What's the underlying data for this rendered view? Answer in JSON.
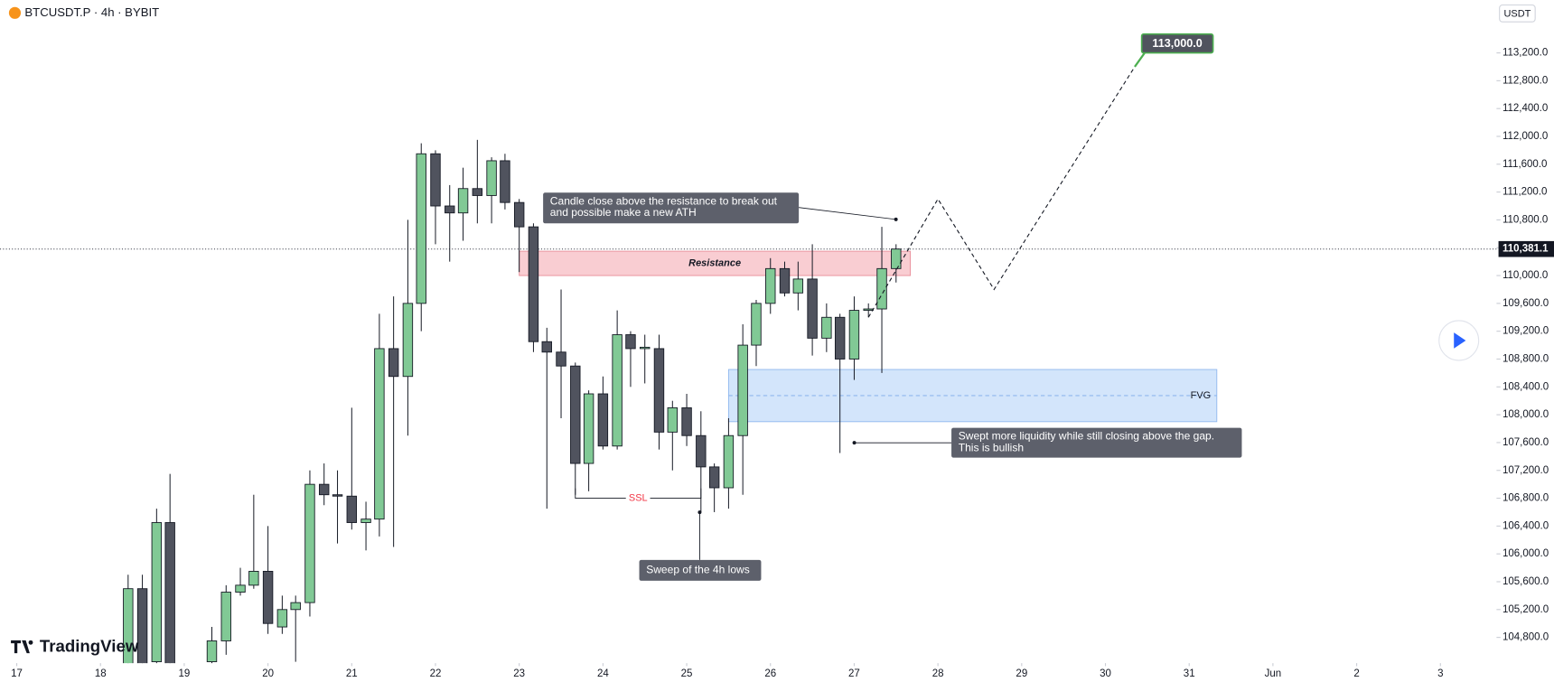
{
  "chart_data": {
    "type": "candlestick",
    "title": "BTCUSDT.P · 4h · BYBIT",
    "currency": "USDT",
    "branding": "TradingView",
    "up_color": "#81c995",
    "down_color": "#50535e",
    "x": [
      18.33,
      18.5,
      18.67,
      18.83,
      19.33,
      19.5,
      19.67,
      19.83,
      20,
      20.17,
      20.33,
      20.5,
      20.67,
      20.83,
      21,
      21.17,
      21.33,
      21.5,
      21.67,
      21.83,
      22,
      22.17,
      22.33,
      22.5,
      22.67,
      22.83,
      23,
      23.17,
      23.33,
      23.5,
      23.67,
      23.83,
      24,
      24.17,
      24.33,
      24.5,
      24.67,
      24.83,
      25,
      25.17,
      25.33,
      25.5,
      25.67,
      25.83,
      26,
      26.17,
      26.33,
      26.5,
      26.67,
      26.83,
      27,
      27.17,
      27.33,
      27.5
    ],
    "open": [
      104350,
      105500,
      104450,
      106450,
      104450,
      104750,
      105450,
      105550,
      105750,
      104950,
      105200,
      105300,
      107000,
      106850,
      106830,
      106450,
      106500,
      108950,
      108550,
      109600,
      111750,
      111000,
      110900,
      111250,
      111150,
      111650,
      111050,
      110700,
      109050,
      108900,
      108700,
      107300,
      108300,
      107550,
      109150,
      108950,
      108950,
      107750,
      108100,
      107700,
      107250,
      106950,
      107700,
      109000,
      109600,
      110100,
      109750,
      109950,
      109100,
      109400,
      108800,
      109500,
      109520,
      110100
    ],
    "high": [
      105700,
      105700,
      106650,
      107150,
      104950,
      105550,
      105800,
      106850,
      106400,
      105400,
      105400,
      107200,
      107300,
      107200,
      108100,
      106750,
      109450,
      109700,
      110800,
      111900,
      111800,
      111300,
      111550,
      111950,
      111700,
      111750,
      111100,
      110750,
      109250,
      109800,
      108750,
      108350,
      108550,
      109500,
      109200,
      109150,
      109150,
      108200,
      108300,
      108050,
      107300,
      107950,
      109300,
      109650,
      110250,
      110200,
      110200,
      110450,
      109600,
      109450,
      109700,
      109600,
      110700,
      110450
    ],
    "low": [
      104100,
      104100,
      104250,
      104100,
      104250,
      104550,
      105400,
      105500,
      104850,
      104850,
      104450,
      105100,
      106700,
      106150,
      106350,
      106050,
      106250,
      106100,
      107700,
      109200,
      110450,
      110200,
      110500,
      110750,
      110750,
      110950,
      110050,
      108900,
      106650,
      107950,
      106850,
      106900,
      107500,
      107500,
      108400,
      108450,
      107500,
      107200,
      107550,
      106600,
      106600,
      106650,
      106850,
      108700,
      109450,
      109700,
      109500,
      108850,
      108900,
      107450,
      108500,
      109400,
      108600,
      109900
    ],
    "close": [
      105500,
      104250,
      106450,
      104350,
      104750,
      105450,
      105550,
      105750,
      105000,
      105200,
      105300,
      107000,
      106850,
      106830,
      106450,
      106500,
      108950,
      108550,
      109600,
      111750,
      111000,
      110900,
      111250,
      111150,
      111650,
      111050,
      110700,
      109050,
      108900,
      108700,
      107300,
      108300,
      107550,
      109150,
      108950,
      108970,
      107750,
      108100,
      107700,
      107250,
      106950,
      107700,
      109000,
      109600,
      110100,
      109750,
      109950,
      109100,
      109400,
      108800,
      109500,
      109520,
      110100,
      110381.1
    ],
    "xlim": [
      16.8,
      34.67
    ],
    "ylim": [
      104430,
      113960
    ],
    "xticks": [
      17,
      18,
      19,
      20,
      21,
      22,
      23,
      24,
      25,
      26,
      27,
      28,
      29,
      30,
      31,
      {
        "value": 32,
        "label": "Jun"
      },
      {
        "value": 33,
        "label": "2"
      },
      {
        "value": 34,
        "label": "3"
      }
    ],
    "yticks": [
      {
        "value": 104800,
        "label": "104,800.0"
      },
      {
        "value": 105200,
        "label": "105,200.0"
      },
      {
        "value": 105600,
        "label": "105,600.0"
      },
      {
        "value": 106000,
        "label": "106,000.0"
      },
      {
        "value": 106400,
        "label": "106,400.0"
      },
      {
        "value": 106800,
        "label": "106,800.0"
      },
      {
        "value": 107200,
        "label": "107,200.0"
      },
      {
        "value": 107600,
        "label": "107,600.0"
      },
      {
        "value": 108000,
        "label": "108,000.0"
      },
      {
        "value": 108400,
        "label": "108,400.0"
      },
      {
        "value": 108800,
        "label": "108,800.0"
      },
      {
        "value": 109200,
        "label": "109,200.0"
      },
      {
        "value": 109600,
        "label": "109,600.0"
      },
      {
        "value": 110000,
        "label": "110,000.0"
      },
      {
        "value": 110400,
        "label": "110,400.0"
      },
      {
        "value": 110800,
        "label": "110,800.0"
      },
      {
        "value": 111200,
        "label": "111,200.0"
      },
      {
        "value": 111600,
        "label": "111,600.0"
      },
      {
        "value": 112000,
        "label": "112,000.0"
      },
      {
        "value": 112400,
        "label": "112,400.0"
      },
      {
        "value": 112800,
        "label": "112,800.0"
      },
      {
        "value": 113200,
        "label": "113,200.0"
      }
    ],
    "last_price": {
      "value": 110381.1,
      "label": "110,381.1"
    },
    "zones": [
      {
        "label": "Resistance",
        "x": [
          23,
          27.67
        ],
        "y": [
          110000,
          110350
        ],
        "color": "#f9cdd2"
      },
      {
        "label": "FVG",
        "x": [
          25.5,
          31.33
        ],
        "y": [
          107900,
          108650
        ],
        "color": "#d3e5fb"
      }
    ],
    "ssl": {
      "label": "SSL",
      "x": [
        23.67,
        25.17
      ],
      "value": 106800
    },
    "projection": {
      "x": [
        27.17,
        28,
        28.67,
        30.35
      ],
      "values": [
        109400,
        111100,
        109800,
        113000
      ]
    },
    "target": {
      "value": 113000,
      "label": "113,000.0"
    },
    "annotations": [
      {
        "lines": [
          "Candle close above the resistance to break out",
          "and possible make a new ATH"
        ]
      },
      {
        "lines": [
          "Swept more liquidity while still closing above the gap.",
          "This is bullish"
        ]
      },
      {
        "lines": [
          "Sweep of the 4h lows"
        ]
      }
    ]
  }
}
